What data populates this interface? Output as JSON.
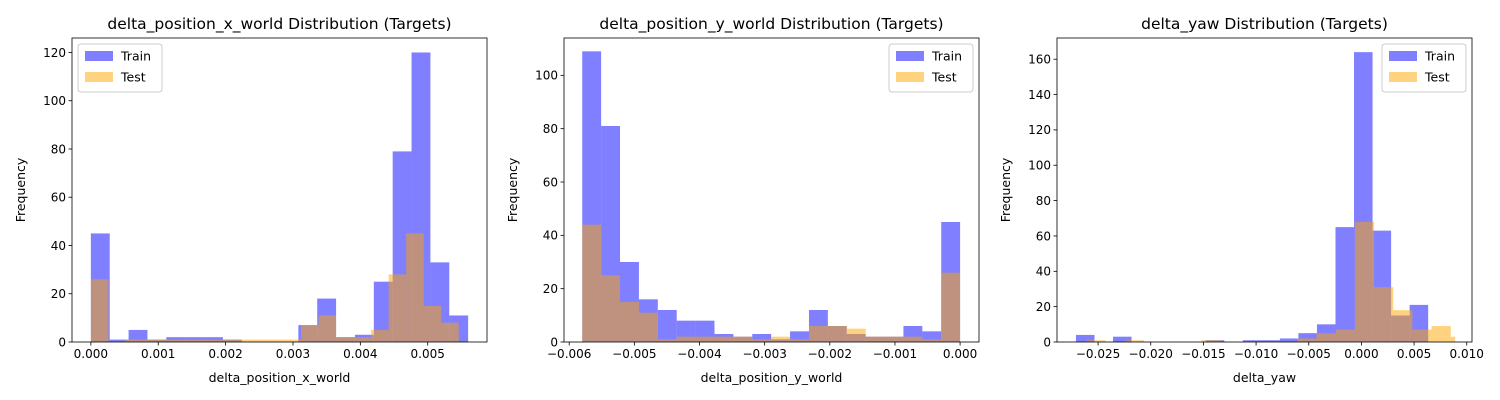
{
  "chart_data": [
    {
      "type": "histogram",
      "title": "delta_position_x_world Distribution (Targets)",
      "xlabel": "delta_position_x_world",
      "ylabel": "Frequency",
      "xlim": [
        -0.00028,
        0.00588
      ],
      "ylim": [
        0,
        126
      ],
      "xticks": [
        0.0,
        0.001,
        0.002,
        0.003,
        0.004,
        0.005
      ],
      "xtick_labels": [
        "0.000",
        "0.001",
        "0.002",
        "0.003",
        "0.004",
        "0.005"
      ],
      "yticks": [
        0,
        20,
        40,
        60,
        80,
        100,
        120
      ],
      "ytick_labels": [
        "0",
        "20",
        "40",
        "60",
        "80",
        "100",
        "120"
      ],
      "legend": "top-left",
      "series": [
        {
          "name": "Train",
          "color": "#0000ff",
          "alpha": 0.5,
          "bin_edges": [
            0,
            0.00028,
            0.00056,
            0.00084,
            0.00112,
            0.0014,
            0.00168,
            0.00196,
            0.00224,
            0.00252,
            0.0028,
            0.00308,
            0.00336,
            0.00364,
            0.00392,
            0.0042,
            0.00448,
            0.00476,
            0.00504,
            0.00532,
            0.0056
          ],
          "counts": [
            45,
            1,
            5,
            1,
            2,
            2,
            2,
            1,
            0,
            0,
            0,
            7,
            18,
            2,
            3,
            25,
            79,
            120,
            33,
            11
          ]
        },
        {
          "name": "Test",
          "color": "#ffa500",
          "alpha": 0.5,
          "bin_edges": [
            0,
            0.00026,
            0.00052,
            0.00078,
            0.00104,
            0.0013,
            0.00156,
            0.00182,
            0.00208,
            0.00234,
            0.0026,
            0.00286,
            0.00312,
            0.00338,
            0.00364,
            0.0039,
            0.00416,
            0.00442,
            0.00468,
            0.00494,
            0.0052,
            0.00546,
            0.0056
          ],
          "counts": [
            26,
            0,
            1,
            1,
            1,
            1,
            1,
            1,
            1,
            1,
            1,
            1,
            7,
            11,
            2,
            2,
            5,
            28,
            45,
            15,
            8,
            0
          ]
        }
      ]
    },
    {
      "type": "histogram",
      "title": "delta_position_y_world Distribution (Targets)",
      "xlabel": "delta_position_y_world",
      "ylabel": "Frequency",
      "xlim": [
        -0.00608,
        0.00029
      ],
      "ylim": [
        0,
        114
      ],
      "xticks": [
        -0.006,
        -0.005,
        -0.004,
        -0.003,
        -0.002,
        -0.001,
        0.0
      ],
      "xtick_labels": [
        "−0.006",
        "−0.005",
        "−0.004",
        "−0.003",
        "−0.002",
        "−0.001",
        "0.000"
      ],
      "yticks": [
        0,
        20,
        40,
        60,
        80,
        100
      ],
      "ytick_labels": [
        "0",
        "20",
        "40",
        "60",
        "80",
        "100"
      ],
      "legend": "top-right",
      "series": [
        {
          "name": "Train",
          "color": "#0000ff",
          "alpha": 0.5,
          "bin_edges": [
            -0.0058,
            -0.00551,
            -0.00522,
            -0.00493,
            -0.00464,
            -0.00435,
            -0.00406,
            -0.00377,
            -0.00348,
            -0.00319,
            -0.0029,
            -0.00261,
            -0.00232,
            -0.00203,
            -0.00174,
            -0.00145,
            -0.00116,
            -0.00087,
            -0.00058,
            -0.00029,
            0.0
          ],
          "counts": [
            109,
            81,
            30,
            16,
            12,
            8,
            8,
            3,
            2,
            3,
            1,
            4,
            12,
            6,
            3,
            2,
            2,
            6,
            4,
            45
          ]
        },
        {
          "name": "Test",
          "color": "#ffa500",
          "alpha": 0.5,
          "bin_edges": [
            -0.0058,
            -0.00551,
            -0.00522,
            -0.00493,
            -0.00464,
            -0.00435,
            -0.00406,
            -0.00377,
            -0.00348,
            -0.00319,
            -0.0029,
            -0.00261,
            -0.00232,
            -0.00203,
            -0.00174,
            -0.00145,
            -0.00116,
            -0.00087,
            -0.00058,
            -0.00029,
            0.0
          ],
          "counts": [
            44,
            25,
            15,
            11,
            1,
            2,
            2,
            2,
            2,
            1,
            2,
            1,
            6,
            6,
            5,
            2,
            2,
            2,
            1,
            26
          ]
        }
      ]
    },
    {
      "type": "histogram",
      "title": "delta_yaw Distribution (Targets)",
      "xlabel": "delta_yaw",
      "ylabel": "Frequency",
      "xlim": [
        -0.0289,
        0.0105
      ],
      "ylim": [
        0,
        172
      ],
      "xticks": [
        -0.025,
        -0.02,
        -0.015,
        -0.01,
        -0.005,
        0.0,
        0.005,
        0.01
      ],
      "xtick_labels": [
        "−0.025",
        "−0.020",
        "−0.015",
        "−0.010",
        "−0.005",
        "0.000",
        "0.005",
        "0.010"
      ],
      "yticks": [
        0,
        20,
        40,
        60,
        80,
        100,
        120,
        140,
        160
      ],
      "ytick_labels": [
        "0",
        "20",
        "40",
        "60",
        "80",
        "100",
        "120",
        "140",
        "160"
      ],
      "legend": "top-right",
      "series": [
        {
          "name": "Train",
          "color": "#0000ff",
          "alpha": 0.5,
          "bin_edges": [
            -0.0271,
            -0.02534,
            -0.02358,
            -0.02182,
            -0.02006,
            -0.0183,
            -0.01654,
            -0.01478,
            -0.01302,
            -0.01126,
            -0.0095,
            -0.00774,
            -0.00598,
            -0.00422,
            -0.00246,
            -0.0007,
            0.00106,
            0.00282,
            0.00458,
            0.00634,
            0.0081
          ],
          "counts": [
            4,
            0,
            3,
            0,
            0,
            0,
            0,
            1,
            0,
            1,
            1,
            2,
            5,
            10,
            65,
            164,
            63,
            15,
            21,
            0
          ]
        },
        {
          "name": "Test",
          "color": "#ffa500",
          "alpha": 0.5,
          "bin_edges": [
            -0.0261,
            -0.02428,
            -0.02246,
            -0.02064,
            -0.01882,
            -0.017,
            -0.01518,
            -0.01336,
            -0.01154,
            -0.00972,
            -0.0079,
            -0.00608,
            -0.00426,
            -0.00244,
            -0.00062,
            0.0012,
            0.00302,
            0.00484,
            0.00666,
            0.00848,
            0.0089
          ],
          "counts": [
            1,
            0,
            1,
            0,
            0,
            0,
            1,
            0,
            0,
            0,
            0,
            2,
            5,
            7,
            68,
            31,
            18,
            7,
            9,
            3
          ]
        }
      ]
    }
  ]
}
